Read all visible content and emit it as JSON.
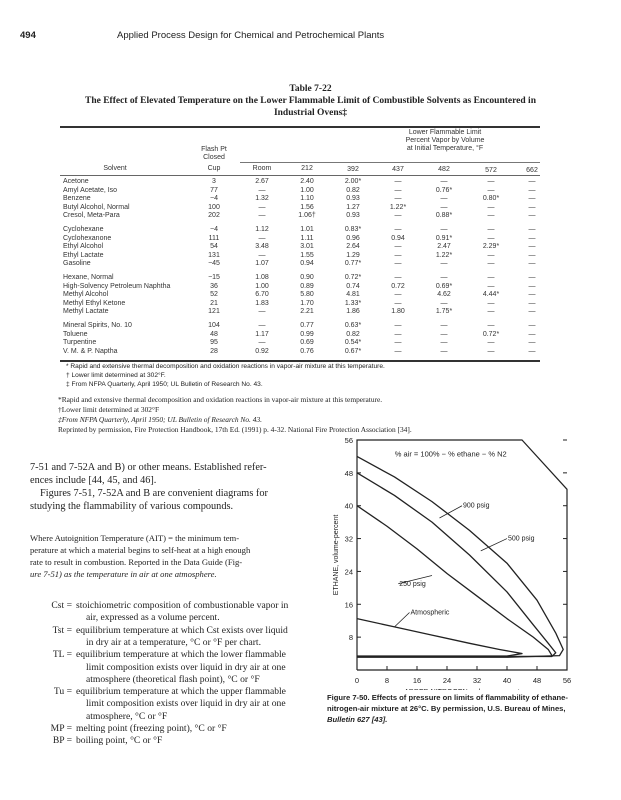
{
  "header": {
    "page_number": "494",
    "running_title": "Applied Process Design for Chemical and Petrochemical Plants"
  },
  "table": {
    "number": "Table 7-22",
    "title_line1": "The Effect of Elevated Temperature on the Lower Flammable Limit of Combustible Solvents as Encountered in",
    "title_line2": "Industrial Ovens‡",
    "group_header": [
      "Lower Flammable Limit",
      "Percent Vapor by Volume",
      "at Initial Temperature, °F"
    ],
    "flash_header": [
      "Flash Pt",
      "Closed",
      "Cup"
    ],
    "columns": [
      "Solvent",
      "Room",
      "212",
      "392",
      "437",
      "482",
      "572",
      "662"
    ],
    "groups": [
      [
        [
          "Acetone",
          "3",
          "2.67",
          "2.40",
          "2.00*",
          "—",
          "—",
          "—",
          "—"
        ],
        [
          "Amyl Acetate, Iso",
          "77",
          "—",
          "1.00",
          "0.82",
          "—",
          "0.76*",
          "—",
          "—"
        ],
        [
          "Benzene",
          "−4",
          "1.32",
          "1.10",
          "0.93",
          "—",
          "—",
          "0.80*",
          "—"
        ],
        [
          "Butyl Alcohol, Normal",
          "100",
          "—",
          "1.56",
          "1.27",
          "1.22*",
          "—",
          "—",
          "—"
        ],
        [
          "Cresol, Meta-Para",
          "202",
          "—",
          "1.06†",
          "0.93",
          "—",
          "0.88*",
          "—",
          "—"
        ]
      ],
      [
        [
          "Cyclohexane",
          "−4",
          "1.12",
          "1.01",
          "0.83*",
          "—",
          "—",
          "—",
          "—"
        ],
        [
          "Cyclohexanone",
          "111",
          "—",
          "1.11",
          "0.96",
          "0.94",
          "0.91*",
          "—",
          "—"
        ],
        [
          "Ethyl Alcohol",
          "54",
          "3.48",
          "3.01",
          "2.64",
          "—",
          "2.47",
          "2.29*",
          "—"
        ],
        [
          "Ethyl Lactate",
          "131",
          "—",
          "1.55",
          "1.29",
          "—",
          "1.22*",
          "—",
          "—"
        ],
        [
          "Gasoline",
          "−45",
          "1.07",
          "0.94",
          "0.77*",
          "—",
          "—",
          "—",
          "—"
        ]
      ],
      [
        [
          "Hexane, Normal",
          "−15",
          "1.08",
          "0.90",
          "0.72*",
          "—",
          "—",
          "—",
          "—"
        ],
        [
          "High-Solvency Petroleum Naphtha",
          "36",
          "1.00",
          "0.89",
          "0.74",
          "0.72",
          "0.69*",
          "—",
          "—"
        ],
        [
          "Methyl Alcohol",
          "52",
          "6.70",
          "5.80",
          "4.81",
          "—",
          "4.62",
          "4.44*",
          "—"
        ],
        [
          "Methyl Ethyl Ketone",
          "21",
          "1.83",
          "1.70",
          "1.33*",
          "—",
          "—",
          "—",
          "—"
        ],
        [
          "Methyl Lactate",
          "121",
          "—",
          "2.21",
          "1.86",
          "1.80",
          "1.75*",
          "—",
          "—"
        ]
      ],
      [
        [
          "Mineral Spirits, No. 10",
          "104",
          "—",
          "0.77",
          "0.63*",
          "—",
          "—",
          "—",
          "—"
        ],
        [
          "Toluene",
          "48",
          "1.17",
          "0.99",
          "0.82",
          "—",
          "—",
          "0.72*",
          "—"
        ],
        [
          "Turpentine",
          "95",
          "—",
          "0.69",
          "0.54*",
          "—",
          "—",
          "—",
          "—"
        ],
        [
          "V. M. & P. Naptha",
          "28",
          "0.92",
          "0.76",
          "0.67*",
          "—",
          "—",
          "—",
          "—"
        ]
      ]
    ],
    "footnotes": [
      "* Rapid and extensive thermal decomposition and oxidation reactions in vapor-air mixture at this temperature.",
      "† Lower limit determined at 302°F.",
      "‡ From NFPA Quarterly, April 1950; UL Bulletin of Research No. 43."
    ],
    "footnotes2": [
      "*Rapid and extensive thermal decomposition and oxidation reactions in vapor-air mixture at this temperature.",
      "†Lower limit determined at 302°F",
      "‡From NFPA Quarterly, April 1950; UL Bulletin of Research No. 43.",
      "Reprinted by permission, Fire Protection Handbook, 17th Ed. (1991) p. 4-32. National Fire Protection Association [34]."
    ]
  },
  "body": {
    "para1": [
      "7-51 and 7-52A and B) or other means. Established refer-",
      "ences include [44, 45, and 46].",
      "Figures 7-51, 7-52A and B are convenient diagrams for",
      "studying the flammability of various compounds."
    ],
    "para2": [
      "Where Autoignition Temperature (AIT) = the minimum tem-",
      "perature at which a material begins to self-heat at a high enough",
      "rate to result in combustion. Reported in the Data Guide (Fig-",
      "ure 7-51) as the temperature in air at one atmosphere."
    ],
    "definitions": [
      {
        "term": "Cst =",
        "lines": [
          "stoichiometric composition of combustionable vapor in",
          "air, expressed as a volume percent."
        ]
      },
      {
        "term": "Tst =",
        "lines": [
          "equilibrium temperature at which Cst exists over liquid",
          "in dry air at a temperature, °C or °F per chart."
        ]
      },
      {
        "term": "TL =",
        "lines": [
          "equilibrium temperature at which the lower flammable",
          "limit composition exists over liquid in dry air at one",
          "atmosphere (theoretical flash point), °C or °F"
        ]
      },
      {
        "term": "Tu =",
        "lines": [
          "equilibrium temperature at which the upper flammable",
          "limit composition exists over liquid in dry air at one",
          "atmosphere, °C or °F"
        ]
      },
      {
        "term": "MP =",
        "lines": [
          "melting point (freezing point), °C or °F"
        ]
      },
      {
        "term": "BP =",
        "lines": [
          "boiling point, °C or °F"
        ]
      }
    ]
  },
  "figure": {
    "caption": [
      "Figure 7-50. Effects of pressure on limits of flammability of ethane-",
      "nitrogen-air mixture at 26°C. By permission, U.S. Bureau of Mines,",
      "Bulletin 627 [43]."
    ]
  },
  "chart_data": {
    "type": "line",
    "annotation": "% air = 100% − % ethane − % N2",
    "xlabel": "ADDED NITROGEN, volume-percent",
    "ylabel": "ETHANE, volume-percent",
    "xlim": [
      0,
      56
    ],
    "ylim": [
      0,
      56
    ],
    "xticks": [
      "0",
      "8",
      "16",
      "24",
      "32",
      "40",
      "48",
      "56"
    ],
    "yticks": [
      "8",
      "16",
      "24",
      "32",
      "40",
      "48",
      "56"
    ],
    "series": [
      {
        "name": "900 psig",
        "points": [
          [
            0,
            52
          ],
          [
            10,
            47
          ],
          [
            20,
            41
          ],
          [
            30,
            34
          ],
          [
            40,
            26
          ],
          [
            48,
            17
          ],
          [
            53,
            9
          ],
          [
            55,
            5
          ],
          [
            54,
            3.5
          ],
          [
            40,
            3.1
          ],
          [
            0,
            3.1
          ]
        ]
      },
      {
        "name": "500 psig",
        "points": [
          [
            0,
            48
          ],
          [
            10,
            42.5
          ],
          [
            20,
            36
          ],
          [
            30,
            28
          ],
          [
            40,
            19
          ],
          [
            47,
            11
          ],
          [
            51,
            6.5
          ],
          [
            53,
            4.2
          ],
          [
            52,
            3.3
          ],
          [
            0,
            3.3
          ]
        ]
      },
      {
        "name": "250 psig",
        "points": [
          [
            0,
            40
          ],
          [
            8,
            35
          ],
          [
            16,
            29.5
          ],
          [
            24,
            23.5
          ],
          [
            32,
            18
          ],
          [
            40,
            12.5
          ],
          [
            47,
            8
          ],
          [
            51,
            5
          ],
          [
            52,
            3.5
          ]
        ]
      },
      {
        "name": "Atmospheric",
        "points": [
          [
            0,
            12.5
          ],
          [
            10,
            10.5
          ],
          [
            20,
            8.5
          ],
          [
            30,
            6.5
          ],
          [
            38,
            5
          ],
          [
            44,
            4
          ],
          [
            40,
            3.4
          ],
          [
            0,
            3.4
          ]
        ]
      }
    ]
  }
}
